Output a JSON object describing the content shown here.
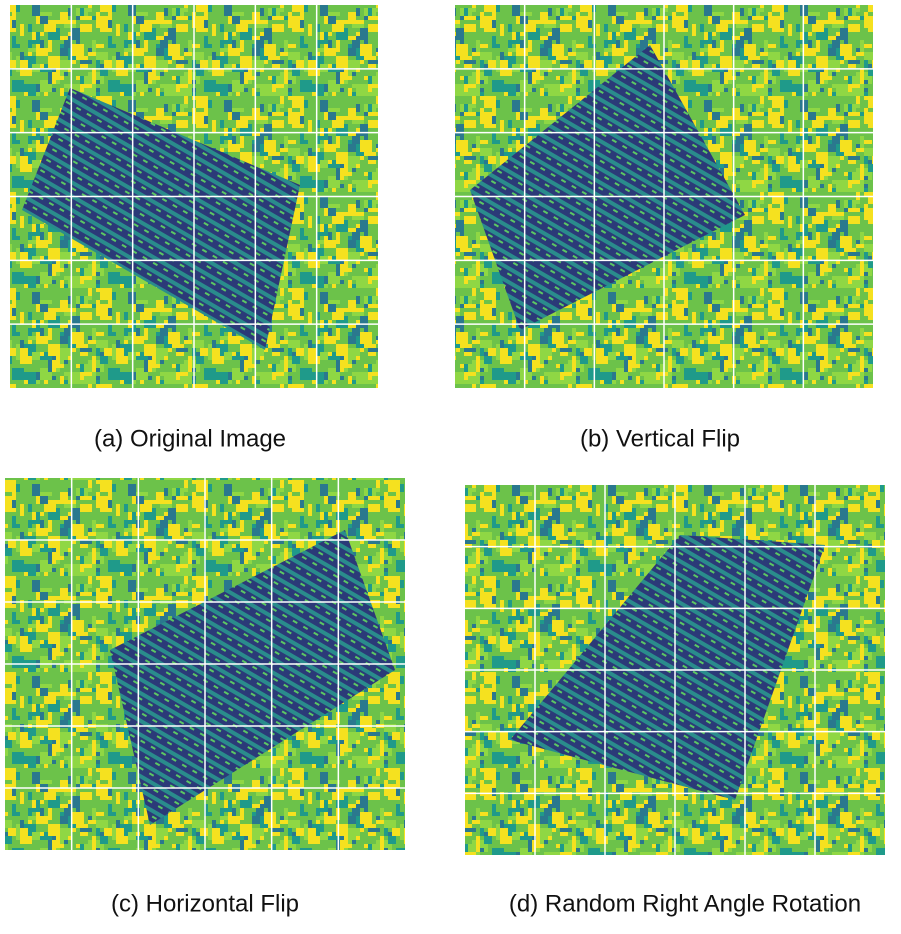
{
  "figure": {
    "panels": [
      {
        "caption": "(a) Original Image"
      },
      {
        "caption": "(b) Vertical Flip"
      },
      {
        "caption": "(c) Horizontal Flip"
      },
      {
        "caption": "(d) Random Right Angle Rotation"
      }
    ]
  }
}
